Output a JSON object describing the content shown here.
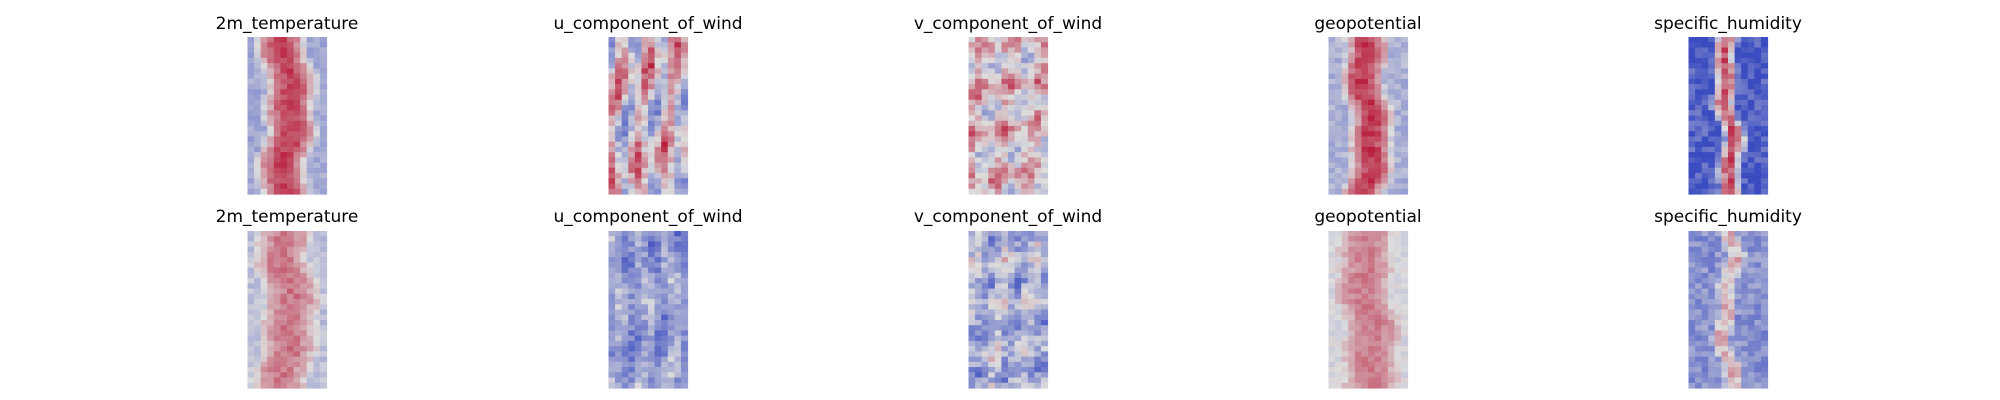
{
  "chart_data": {
    "type": "heatmap",
    "layout": {
      "rows": 2,
      "cols": 5
    },
    "colormap": {
      "name": "coolwarm",
      "low": "#3b4cc0",
      "mid": "#dddddd",
      "high": "#b40426"
    },
    "axes_visible": false,
    "panels": [
      {
        "row": 0,
        "col": 0,
        "title": "2m_temperature",
        "pattern": "band",
        "band_level": 0.86,
        "edge_level": 0.32,
        "band_halfwidth": 0.36,
        "noise": 0.06,
        "seed": 11
      },
      {
        "row": 0,
        "col": 1,
        "title": "u_component_of_wind",
        "pattern": "streaks",
        "mean": 0.52,
        "amplitude": 0.34,
        "noise": 0.1,
        "seed": 23
      },
      {
        "row": 0,
        "col": 2,
        "title": "v_component_of_wind",
        "pattern": "swirl",
        "mean": 0.55,
        "amplitude": 0.22,
        "noise": 0.12,
        "seed": 37
      },
      {
        "row": 0,
        "col": 3,
        "title": "geopotential",
        "pattern": "band",
        "band_level": 0.88,
        "edge_level": 0.35,
        "band_halfwidth": 0.3,
        "noise": 0.07,
        "seed": 41
      },
      {
        "row": 0,
        "col": 4,
        "title": "specific_humidity",
        "pattern": "narrow",
        "band_level": 0.82,
        "edge_level": 0.06,
        "band_halfwidth": 0.16,
        "noise": 0.12,
        "seed": 53
      },
      {
        "row": 1,
        "col": 0,
        "title": "2m_temperature",
        "pattern": "band",
        "band_level": 0.74,
        "edge_level": 0.4,
        "band_halfwidth": 0.4,
        "noise": 0.06,
        "seed": 67
      },
      {
        "row": 1,
        "col": 1,
        "title": "u_component_of_wind",
        "pattern": "streaks",
        "mean": 0.28,
        "amplitude": 0.14,
        "noise": 0.1,
        "seed": 71
      },
      {
        "row": 1,
        "col": 2,
        "title": "v_component_of_wind",
        "pattern": "swirl",
        "mean": 0.36,
        "amplitude": 0.18,
        "noise": 0.14,
        "seed": 83
      },
      {
        "row": 1,
        "col": 3,
        "title": "geopotential",
        "pattern": "band",
        "band_level": 0.72,
        "edge_level": 0.48,
        "band_halfwidth": 0.38,
        "noise": 0.05,
        "seed": 97
      },
      {
        "row": 1,
        "col": 4,
        "title": "specific_humidity",
        "pattern": "narrow",
        "band_level": 0.62,
        "edge_level": 0.24,
        "band_halfwidth": 0.14,
        "noise": 0.1,
        "seed": 101
      }
    ]
  }
}
